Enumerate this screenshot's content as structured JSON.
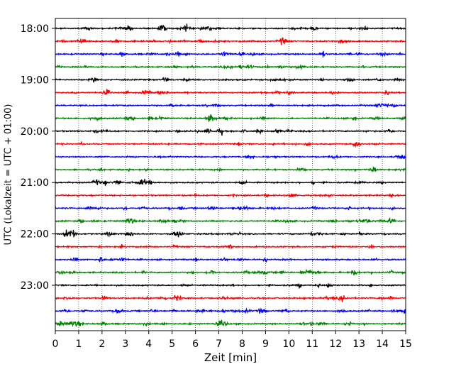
{
  "chart_data": {
    "type": "line",
    "title": "",
    "xlabel": "Zeit  [min]",
    "ylabel": "UTC (Lokalzeit = UTC + 01:00)",
    "xlim": [
      0,
      15
    ],
    "x_ticks": [
      0,
      1,
      2,
      3,
      4,
      5,
      6,
      7,
      8,
      9,
      10,
      11,
      12,
      13,
      14,
      15
    ],
    "x_tick_labels": [
      "0",
      "1",
      "2",
      "3",
      "4",
      "5",
      "6",
      "7",
      "8",
      "9",
      "10",
      "11",
      "12",
      "13",
      "14",
      "15"
    ],
    "y_tick_labels": [
      "18:00",
      "19:00",
      "20:00",
      "21:00",
      "22:00",
      "23:00"
    ],
    "trace_interval_minutes": 15,
    "trace_start_times": [
      "18:00",
      "18:15",
      "18:30",
      "18:45",
      "19:00",
      "19:15",
      "19:30",
      "19:45",
      "20:00",
      "20:15",
      "20:30",
      "20:45",
      "21:00",
      "21:15",
      "21:30",
      "21:45",
      "22:00",
      "22:15",
      "22:30",
      "22:45",
      "23:00",
      "23:15",
      "23:30",
      "23:45"
    ],
    "trace_colors": [
      "#000000",
      "#ff0000",
      "#0000ff",
      "#008000"
    ],
    "grid": {
      "x_dotted": true
    }
  }
}
